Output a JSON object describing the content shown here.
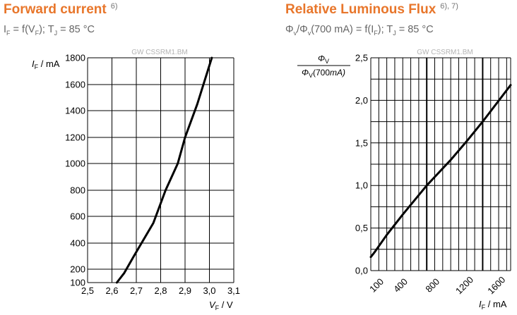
{
  "panels": [
    {
      "title": "Forward current",
      "title_ref": "6)",
      "formula": {
        "p1": "I",
        "s1": "F",
        "p2": " = f(V",
        "s2": "F",
        "p3": "); T",
        "s3": "J",
        "p4": " = 85 °C"
      },
      "watermark": "GW CSSRM1.BM",
      "xlabel": {
        "main": "V",
        "sub": "F",
        "unit": " / V"
      },
      "ylabel": {
        "main": "I",
        "sub": "F",
        "unit": " / mA"
      },
      "x_ticks": [
        "2,5",
        "2,6",
        "2,7",
        "2,8",
        "2,9",
        "3,0",
        "3,1"
      ],
      "y_ticks": [
        "100",
        "200",
        "400",
        "600",
        "800",
        "1000",
        "1200",
        "1400",
        "1600",
        "1800"
      ]
    },
    {
      "title": "Relative Luminous Flux",
      "title_ref": "6), 7)",
      "formula": {
        "p1": "Φ",
        "s1": "v",
        "p2": "/Φ",
        "s2": "v",
        "p3": "(700 mA) = f(I",
        "s3": "F",
        "p4": "); T",
        "s4": "J",
        "p5": " = 85 °C"
      },
      "watermark": "GW CSSRM1.BM",
      "xlabel": {
        "main": "I",
        "sub": "F",
        "unit": " / mA"
      },
      "ylabel": {
        "num": "Φ",
        "num_sub": "V",
        "den": "Φ",
        "den_sub": "V",
        "den_rest": "(700",
        "den_unit": "mA)"
      },
      "x_ticks": [
        "100",
        "400",
        "800",
        "1200",
        "1600"
      ],
      "y_ticks": [
        "0,0",
        "0,5",
        "1,0",
        "1,5",
        "2,0",
        "2,5"
      ]
    }
  ],
  "chart_data": [
    {
      "type": "line",
      "title": "Forward current",
      "xlabel": "VF / V",
      "ylabel": "IF / mA",
      "xlim": [
        2.5,
        3.1
      ],
      "ylim": [
        100,
        1800
      ],
      "y_scale": "linear with compressed 100-200 segment",
      "grid": true,
      "color": "#000000",
      "series": [
        {
          "x": [
            2.62,
            2.65,
            2.69,
            2.77,
            2.82,
            2.87,
            2.9,
            2.95,
            3.01
          ],
          "y": [
            100,
            170,
            300,
            550,
            800,
            1000,
            1200,
            1450,
            1800
          ]
        }
      ]
    },
    {
      "type": "line",
      "title": "Relative Luminous Flux",
      "xlabel": "IF / mA",
      "ylabel": "ΦV/ΦV(700 mA)",
      "xlim": [
        0,
        1750
      ],
      "ylim": [
        0.0,
        2.5
      ],
      "grid": true,
      "color": "#000000",
      "series": [
        {
          "x": [
            0,
            50,
            200,
            400,
            700,
            1000,
            1200,
            1400,
            1750
          ],
          "y": [
            0.16,
            0.22,
            0.42,
            0.66,
            1.0,
            1.3,
            1.52,
            1.75,
            2.18
          ]
        }
      ]
    }
  ]
}
